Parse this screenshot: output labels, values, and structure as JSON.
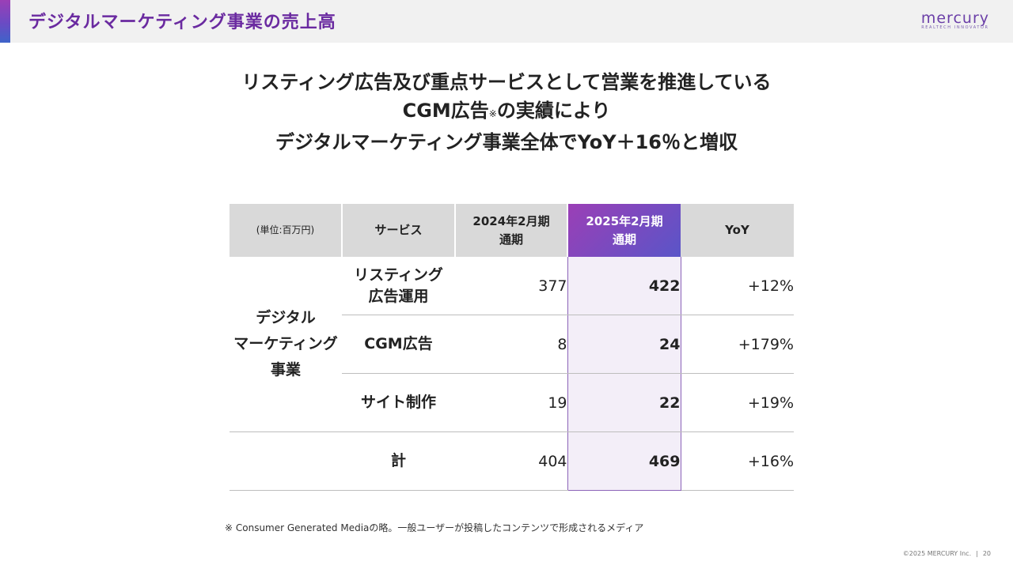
{
  "header": {
    "title": "デジタルマーケティング事業の売上高",
    "logo_word": "mercury",
    "logo_tagline": "REALTECH INNOVATOR"
  },
  "headline": {
    "line1": "リスティング広告及び重点サービスとして営業を推進している",
    "line2_main": "CGM広告",
    "line2_mark": "※",
    "line2_end": "の実績により",
    "line3": "デジタルマーケティング事業全体でYoY＋16％と増収"
  },
  "table": {
    "unit_label": "(単位:百万円)",
    "col_service": "サービス",
    "col_prev_line1": "2024年2月期",
    "col_prev_line2": "通期",
    "col_curr_line1": "2025年2月期",
    "col_curr_line2": "通期",
    "col_yoy": "YoY",
    "category_line1": "デジタル",
    "category_line2": "マーケティング",
    "category_line3": "事業",
    "rows": [
      {
        "service_line1": "リスティング",
        "service_line2": "広告運用",
        "prev": "377",
        "curr": "422",
        "yoy": "+12%"
      },
      {
        "service_line1": "CGM広告",
        "prev": "8",
        "curr": "24",
        "yoy": "+179%"
      },
      {
        "service_line1": "サイト制作",
        "prev": "19",
        "curr": "22",
        "yoy": "+19%"
      }
    ],
    "total": {
      "label": "計",
      "prev": "404",
      "curr": "469",
      "yoy": "+16%"
    }
  },
  "footnote": "※ Consumer Generated Mediaの略。一般ユーザーが投稿したコンテンツで形成されるメディア",
  "footer": {
    "copyright": "©2025 MERCURY Inc.",
    "separator": "|",
    "page_number": "20"
  },
  "colors": {
    "accent_purple": "#6a2aa0",
    "highlight_gradient_start": "#9b3fb6",
    "highlight_gradient_end": "#5a55c8",
    "highlight_column_bg": "#f3eef8"
  }
}
